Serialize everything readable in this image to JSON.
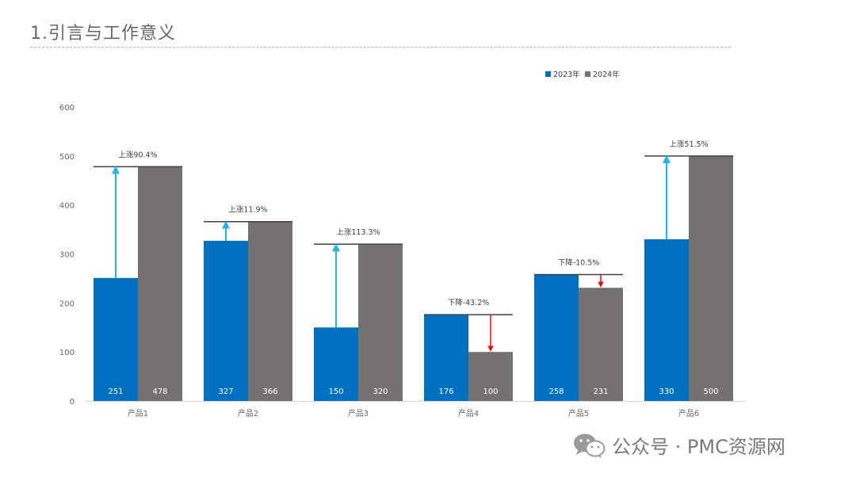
{
  "page": {
    "title": "1.引言与工作意义"
  },
  "watermark": {
    "text": "公众号 · PMC资源网",
    "icon": "wechat-icon"
  },
  "chart_data": {
    "type": "bar",
    "categories": [
      "产品1",
      "产品2",
      "产品3",
      "产品4",
      "产品5",
      "产品6"
    ],
    "series": [
      {
        "name": "2023年",
        "color": "#0070c0",
        "values": [
          251,
          327,
          150,
          176,
          258,
          330
        ]
      },
      {
        "name": "2024年",
        "color": "#767171",
        "values": [
          478,
          366,
          320,
          100,
          231,
          500
        ]
      }
    ],
    "annotations": [
      "上涨90.4%",
      "上涨11.9%",
      "上涨113.3%",
      "下降-43.2%",
      "下降-10.5%",
      "上涨51.5%"
    ],
    "arrow_colors": {
      "up": "#1fb4ec",
      "down": "#ff0000"
    },
    "ylim": [
      0,
      600
    ],
    "yticks": [
      0,
      100,
      200,
      300,
      400,
      500,
      600
    ],
    "legend_position": "top-right",
    "grid": false
  }
}
